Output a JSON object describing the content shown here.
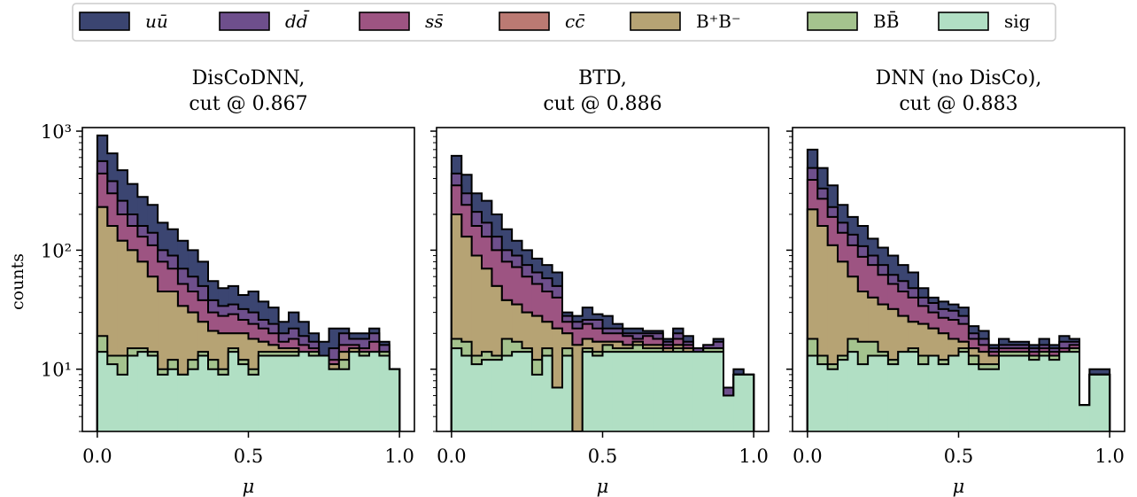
{
  "colors": {
    "uu": "#3b4571",
    "dd": "#6e4f8c",
    "ss": "#9d5482",
    "cc": "#bb7a73",
    "bpbm": "#b6a374",
    "bb": "#a4c38e",
    "sig": "#b1dfc4"
  },
  "legend": [
    {
      "key": "uu",
      "label": "uū"
    },
    {
      "key": "dd",
      "label": "dd̄"
    },
    {
      "key": "ss",
      "label": "ss̄"
    },
    {
      "key": "cc",
      "label": "cc̄"
    },
    {
      "key": "bpbm",
      "label": "B⁺B⁻"
    },
    {
      "key": "bb",
      "label": "BB̄"
    },
    {
      "key": "sig",
      "label": "sig"
    }
  ],
  "ylabel": "counts",
  "xlabel": "μ",
  "chart_data": [
    {
      "type": "bar",
      "title": [
        "DisCoDNN,",
        "cut @ 0.867"
      ],
      "xlabel": "μ",
      "ylabel": "counts",
      "xlim": [
        0,
        1
      ],
      "ylim": [
        3,
        1000
      ],
      "yscale": "log",
      "stacked": true,
      "bins": 30,
      "xticks": [
        "0.0",
        "0.5",
        "1.0"
      ],
      "yticks": [
        "10¹",
        "10²",
        "10³"
      ],
      "series": [
        {
          "key": "sig",
          "values": [
            14,
            11,
            9,
            13,
            14,
            13,
            9,
            10,
            9,
            10,
            13,
            10,
            9,
            14,
            11,
            9,
            13,
            13,
            13,
            13,
            14,
            13,
            13,
            10,
            10,
            14,
            13,
            14,
            13,
            10
          ]
        },
        {
          "key": "bb",
          "values": [
            19,
            13,
            13,
            15,
            15,
            14,
            10,
            12,
            9,
            12,
            14,
            12,
            10,
            15,
            12,
            10,
            14,
            14,
            14,
            14,
            14,
            14,
            4,
            10,
            12,
            14,
            14,
            14,
            14,
            10
          ]
        },
        {
          "key": "bpbm",
          "values": [
            230,
            160,
            120,
            100,
            80,
            60,
            45,
            45,
            34,
            30,
            25,
            21,
            20,
            20,
            20,
            18,
            17,
            16,
            15,
            15,
            14,
            14,
            7,
            11,
            14,
            15,
            14,
            14,
            14,
            10
          ]
        },
        {
          "key": "cc",
          "values": [
            230,
            160,
            120,
            100,
            80,
            60,
            45,
            45,
            34,
            30,
            25,
            21,
            20,
            20,
            20,
            18,
            17,
            16,
            15,
            15,
            14,
            14,
            7,
            11,
            14,
            15,
            14,
            14,
            14,
            10
          ]
        },
        {
          "key": "ss",
          "values": [
            440,
            300,
            200,
            160,
            130,
            110,
            80,
            70,
            52,
            45,
            38,
            30,
            28,
            29,
            26,
            24,
            22,
            20,
            17,
            18,
            16,
            15,
            10,
            12,
            16,
            16,
            15,
            17,
            14,
            10
          ]
        },
        {
          "key": "dd",
          "values": [
            560,
            380,
            260,
            200,
            160,
            140,
            100,
            90,
            70,
            60,
            50,
            38,
            34,
            35,
            32,
            30,
            26,
            24,
            20,
            22,
            19,
            17,
            13,
            15,
            20,
            18,
            18,
            20,
            16,
            10
          ]
        },
        {
          "key": "uu",
          "values": [
            920,
            650,
            470,
            360,
            280,
            240,
            170,
            150,
            120,
            100,
            80,
            55,
            48,
            50,
            42,
            45,
            37,
            33,
            25,
            30,
            25,
            20,
            17,
            22,
            22,
            20,
            20,
            22,
            17,
            10
          ]
        }
      ]
    },
    {
      "type": "bar",
      "title": [
        "BTD,",
        "cut @ 0.886"
      ],
      "xlabel": "μ",
      "xlim": [
        0,
        1
      ],
      "ylim": [
        3,
        1000
      ],
      "yscale": "log",
      "stacked": true,
      "bins": 30,
      "xticks": [
        "0.0",
        "0.5",
        "1.0"
      ],
      "series": [
        {
          "key": "sig",
          "values": [
            15,
            13,
            11,
            12,
            12,
            13,
            14,
            14,
            9,
            13,
            7,
            13,
            3,
            14,
            13,
            14,
            14,
            14,
            14,
            14,
            14,
            14,
            14,
            14,
            14,
            14,
            14,
            6,
            9,
            9
          ]
        },
        {
          "key": "bb",
          "values": [
            18,
            17,
            13,
            14,
            13,
            18,
            17,
            15,
            12,
            15,
            7,
            15,
            3,
            15,
            14,
            16,
            15,
            15,
            16,
            15,
            15,
            14,
            15,
            14,
            14,
            15,
            15,
            6,
            9,
            9
          ]
        },
        {
          "key": "bpbm",
          "values": [
            200,
            130,
            90,
            70,
            50,
            38,
            35,
            30,
            28,
            25,
            22,
            20,
            16,
            18,
            17,
            17,
            17,
            16,
            17,
            16,
            16,
            15,
            16,
            15,
            14,
            15,
            15,
            6,
            9,
            9
          ]
        },
        {
          "key": "cc",
          "values": [
            200,
            130,
            90,
            70,
            50,
            38,
            35,
            30,
            28,
            25,
            22,
            20,
            16,
            18,
            17,
            17,
            17,
            16,
            17,
            16,
            16,
            15,
            16,
            15,
            14,
            15,
            15,
            6,
            9,
            9
          ]
        },
        {
          "key": "ss",
          "values": [
            350,
            240,
            160,
            130,
            100,
            80,
            72,
            60,
            52,
            45,
            40,
            25,
            22,
            24,
            22,
            20,
            20,
            19,
            18,
            19,
            18,
            16,
            18,
            16,
            14,
            15,
            15,
            6,
            9,
            9
          ]
        },
        {
          "key": "dd",
          "values": [
            440,
            300,
            210,
            170,
            130,
            100,
            90,
            75,
            65,
            58,
            50,
            28,
            25,
            26,
            26,
            22,
            22,
            20,
            20,
            20,
            20,
            17,
            20,
            17,
            15,
            16,
            17,
            7,
            9,
            9
          ]
        },
        {
          "key": "uu",
          "values": [
            620,
            430,
            300,
            260,
            200,
            150,
            120,
            100,
            85,
            75,
            65,
            30,
            28,
            33,
            29,
            28,
            24,
            22,
            22,
            21,
            21,
            18,
            22,
            19,
            15,
            16,
            18,
            7,
            10,
            9
          ]
        }
      ]
    },
    {
      "type": "bar",
      "title": [
        "DNN (no DisCo),",
        "cut @ 0.883"
      ],
      "xlabel": "μ",
      "xlim": [
        0,
        1
      ],
      "ylim": [
        3,
        1000
      ],
      "yscale": "log",
      "stacked": true,
      "bins": 30,
      "xticks": [
        "0.0",
        "0.5",
        "1.0"
      ],
      "series": [
        {
          "key": "sig",
          "values": [
            13,
            11,
            10,
            12,
            14,
            11,
            13,
            13,
            11,
            14,
            14,
            11,
            13,
            11,
            13,
            14,
            11,
            10,
            10,
            13,
            13,
            13,
            12,
            13,
            12,
            14,
            14,
            5,
            9,
            9
          ]
        },
        {
          "key": "bb",
          "values": [
            18,
            13,
            11,
            13,
            18,
            17,
            17,
            14,
            12,
            14,
            15,
            13,
            13,
            12,
            13,
            15,
            13,
            11,
            11,
            14,
            14,
            14,
            13,
            14,
            13,
            14,
            15,
            5,
            9,
            9
          ]
        },
        {
          "key": "bpbm",
          "values": [
            220,
            160,
            110,
            80,
            60,
            45,
            40,
            35,
            32,
            28,
            25,
            24,
            22,
            20,
            18,
            17,
            15,
            14,
            13,
            14,
            14,
            14,
            13,
            14,
            13,
            14,
            15,
            5,
            9,
            9
          ]
        },
        {
          "key": "cc",
          "values": [
            220,
            160,
            110,
            80,
            60,
            45,
            40,
            35,
            32,
            28,
            25,
            24,
            22,
            20,
            18,
            17,
            15,
            14,
            13,
            14,
            14,
            14,
            13,
            14,
            13,
            14,
            15,
            5,
            9,
            9
          ]
        },
        {
          "key": "ss",
          "values": [
            390,
            270,
            190,
            140,
            110,
            88,
            75,
            62,
            52,
            45,
            40,
            34,
            30,
            27,
            26,
            24,
            18,
            16,
            14,
            15,
            15,
            15,
            14,
            15,
            14,
            15,
            16,
            5,
            9,
            9
          ]
        },
        {
          "key": "dd",
          "values": [
            490,
            330,
            230,
            170,
            135,
            108,
            90,
            75,
            62,
            55,
            48,
            40,
            36,
            32,
            31,
            28,
            20,
            18,
            15,
            16,
            16,
            16,
            15,
            16,
            15,
            17,
            17,
            5,
            9,
            9
          ]
        },
        {
          "key": "uu",
          "values": [
            700,
            490,
            350,
            240,
            190,
            160,
            125,
            105,
            90,
            75,
            65,
            48,
            40,
            37,
            35,
            33,
            23,
            21,
            16,
            18,
            17,
            17,
            16,
            18,
            16,
            19,
            18,
            5,
            10,
            10
          ]
        }
      ]
    }
  ]
}
